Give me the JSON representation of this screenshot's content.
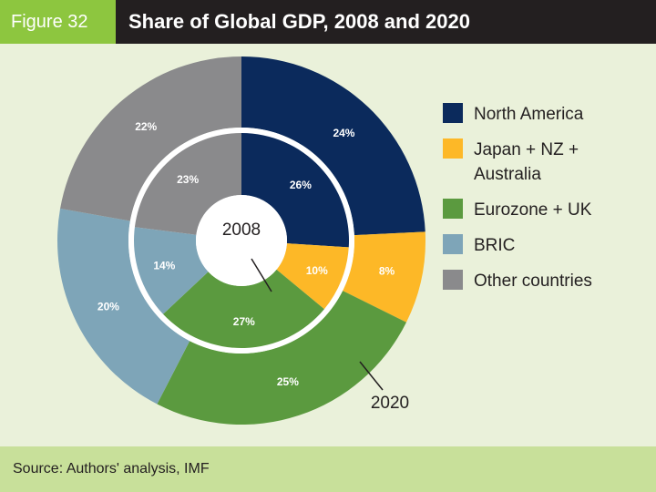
{
  "header": {
    "figure_label": "Figure 32",
    "title": "Share of Global GDP, 2008 and 2020"
  },
  "footer": {
    "source": "Source: Authors' analysis, IMF"
  },
  "chart_data": {
    "type": "pie",
    "subtype": "nested donut",
    "categories": [
      "North America",
      "Japan + NZ + Australia",
      "Eurozone + UK",
      "BRIC",
      "Other countries"
    ],
    "colors": [
      "#0b2a5c",
      "#fdb827",
      "#5b9a3f",
      "#7ea5b8",
      "#8a8a8c"
    ],
    "series": [
      {
        "name": "2008",
        "ring": "inner",
        "values": [
          26,
          10,
          27,
          14,
          23
        ],
        "labels": [
          "26%",
          "10%",
          "27%",
          "14%",
          "23%"
        ]
      },
      {
        "name": "2020",
        "ring": "outer",
        "values": [
          24,
          8,
          25,
          20,
          22
        ],
        "labels": [
          "24%",
          "8%",
          "25%",
          "20%",
          "22%"
        ]
      }
    ],
    "legend_position": "right"
  }
}
